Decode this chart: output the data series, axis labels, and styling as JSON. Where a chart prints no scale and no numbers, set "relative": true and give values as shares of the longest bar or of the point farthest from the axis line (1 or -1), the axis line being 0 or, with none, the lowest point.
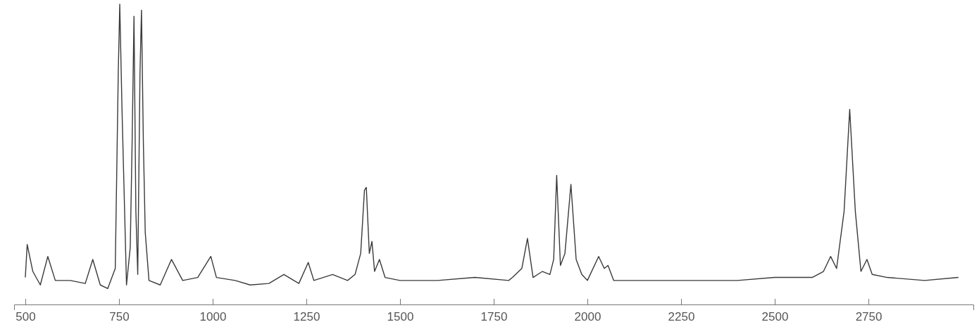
{
  "chart_data": {
    "type": "line",
    "relative": true,
    "xlim": [
      470,
      3030
    ],
    "xticks": [
      500,
      750,
      1000,
      1250,
      1500,
      1750,
      2000,
      2250,
      2500,
      2750
    ],
    "grid": false,
    "marker": "none",
    "line_style": "solid",
    "series": [
      {
        "color": "#3a3a3a",
        "x": [
          500,
          505,
          520,
          540,
          560,
          580,
          620,
          660,
          680,
          700,
          720,
          740,
          748,
          752,
          758,
          770,
          780,
          785,
          790,
          795,
          800,
          806,
          810,
          815,
          820,
          830,
          860,
          890,
          920,
          960,
          995,
          1010,
          1060,
          1100,
          1150,
          1190,
          1230,
          1255,
          1270,
          1320,
          1360,
          1380,
          1395,
          1405,
          1410,
          1418,
          1425,
          1432,
          1445,
          1460,
          1500,
          1600,
          1700,
          1790,
          1800,
          1825,
          1840,
          1855,
          1880,
          1900,
          1910,
          1918,
          1928,
          1940,
          1956,
          1970,
          1985,
          2000,
          2030,
          2045,
          2055,
          2070,
          2150,
          2250,
          2400,
          2500,
          2600,
          2630,
          2649,
          2665,
          2685,
          2700,
          2715,
          2730,
          2746,
          2760,
          2800,
          2900,
          2990
        ],
        "values": [
          0.09,
          0.2,
          0.11,
          0.065,
          0.16,
          0.08,
          0.08,
          0.07,
          0.15,
          0.065,
          0.053,
          0.12,
          0.77,
          1.0,
          0.65,
          0.065,
          0.19,
          0.54,
          0.96,
          0.31,
          0.1,
          0.77,
          0.98,
          0.54,
          0.24,
          0.08,
          0.065,
          0.15,
          0.08,
          0.09,
          0.16,
          0.09,
          0.08,
          0.065,
          0.07,
          0.1,
          0.07,
          0.14,
          0.08,
          0.1,
          0.08,
          0.1,
          0.17,
          0.38,
          0.39,
          0.17,
          0.21,
          0.11,
          0.15,
          0.09,
          0.08,
          0.08,
          0.09,
          0.08,
          0.09,
          0.12,
          0.22,
          0.09,
          0.11,
          0.1,
          0.15,
          0.43,
          0.13,
          0.17,
          0.4,
          0.15,
          0.1,
          0.08,
          0.16,
          0.12,
          0.13,
          0.08,
          0.08,
          0.08,
          0.08,
          0.09,
          0.09,
          0.11,
          0.16,
          0.12,
          0.31,
          0.65,
          0.31,
          0.11,
          0.15,
          0.1,
          0.09,
          0.08,
          0.09
        ]
      }
    ]
  }
}
